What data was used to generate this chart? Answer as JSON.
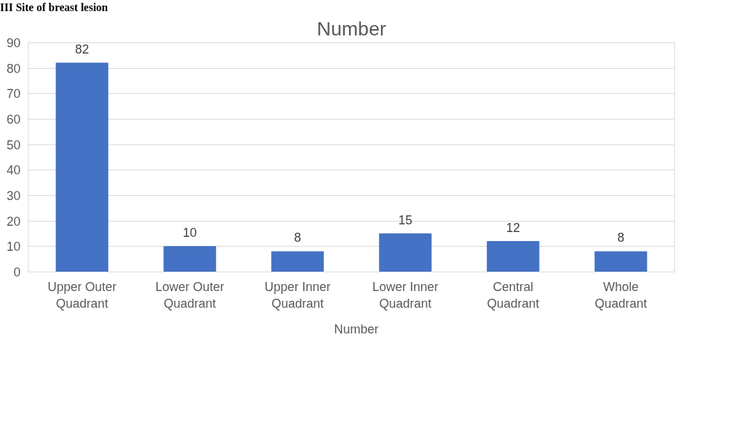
{
  "chart_data": {
    "type": "bar",
    "title": "Number",
    "annotations": [
      "III Site of breast lesion"
    ],
    "categories": [
      "Upper Outer Quadrant",
      "Lower Outer Quadrant",
      "Upper Inner Quadrant",
      "Lower Inner Quadrant",
      "Central Quadrant",
      "Whole Quadrant"
    ],
    "series": [
      {
        "name": "Number",
        "color": "#4472c4",
        "values": [
          82,
          10,
          8,
          15,
          12,
          8
        ]
      }
    ],
    "ylim": [
      0,
      90
    ],
    "yticks": [
      0,
      10,
      20,
      30,
      40,
      50,
      60,
      70,
      80,
      90
    ],
    "grid": "y",
    "legend": "bottom",
    "data_labels": true
  }
}
